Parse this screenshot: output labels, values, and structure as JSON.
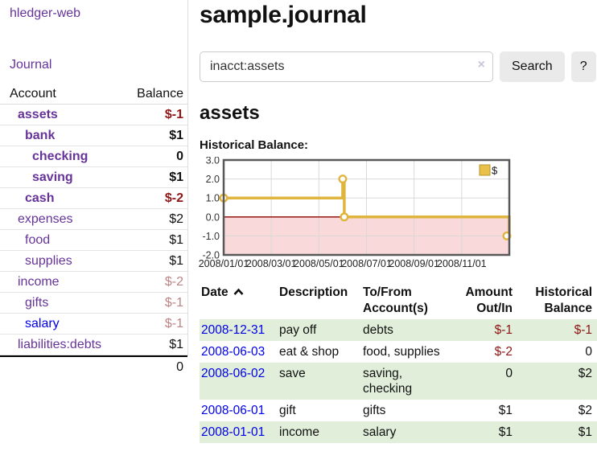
{
  "app": {
    "brand": "hledger-web",
    "nav_journal": "Journal"
  },
  "sidebar": {
    "headers": {
      "account": "Account",
      "balance": "Balance"
    },
    "accounts": [
      {
        "name": "assets",
        "balance": "$-1",
        "indent": 1,
        "matched": true,
        "name_color": "purple",
        "balance_tone": "neg-strong"
      },
      {
        "name": "bank",
        "balance": "$1",
        "indent": 2,
        "matched": true,
        "name_color": "purple",
        "balance_tone": "normal"
      },
      {
        "name": "checking",
        "balance": "0",
        "indent": 3,
        "matched": true,
        "name_color": "purple",
        "balance_tone": "normal"
      },
      {
        "name": "saving",
        "balance": "$1",
        "indent": 3,
        "matched": true,
        "name_color": "purple",
        "balance_tone": "normal"
      },
      {
        "name": "cash",
        "balance": "$-2",
        "indent": 2,
        "matched": true,
        "name_color": "purple",
        "balance_tone": "neg-strong"
      },
      {
        "name": "expenses",
        "balance": "$2",
        "indent": 1,
        "matched": false,
        "name_color": "purple",
        "balance_tone": "normal"
      },
      {
        "name": "food",
        "balance": "$1",
        "indent": 2,
        "matched": false,
        "name_color": "purple",
        "balance_tone": "normal"
      },
      {
        "name": "supplies",
        "balance": "$1",
        "indent": 2,
        "matched": false,
        "name_color": "purple",
        "balance_tone": "normal"
      },
      {
        "name": "income",
        "balance": "$-2",
        "indent": 1,
        "matched": false,
        "name_color": "purple",
        "balance_tone": "neg-light"
      },
      {
        "name": "gifts",
        "balance": "$-1",
        "indent": 2,
        "matched": false,
        "name_color": "purple",
        "balance_tone": "neg-light"
      },
      {
        "name": "salary",
        "balance": "$-1",
        "indent": 2,
        "matched": false,
        "name_color": "blue",
        "balance_tone": "neg-light"
      },
      {
        "name": "liabilities:debts",
        "balance": "$1",
        "indent": 1,
        "matched": false,
        "name_color": "purple",
        "balance_tone": "normal"
      }
    ],
    "total": "0"
  },
  "main": {
    "title": "sample.journal",
    "search": {
      "value": "inacct:assets",
      "clear_icon": "×",
      "button_label": "Search",
      "help_label": "?"
    },
    "section_title": "assets",
    "chart_label": "Historical Balance:"
  },
  "chart_data": {
    "type": "line",
    "title": "Historical Balance of assets",
    "step": true,
    "series": [
      {
        "name": "$",
        "points": [
          {
            "date": "2008-01-01",
            "value": 1
          },
          {
            "date": "2008-06-01",
            "value": 2
          },
          {
            "date": "2008-06-03",
            "value": 0
          },
          {
            "date": "2008-12-31",
            "value": -1
          }
        ]
      }
    ],
    "ylim": [
      -2,
      3
    ],
    "yticks": [
      "3.0",
      "2.0",
      "1.0",
      "0.0",
      "-1.0",
      "-2.0"
    ],
    "xticks": [
      "2008/01/01",
      "2008/03/01",
      "2008/05/01",
      "2008/07/01",
      "2008/09/01",
      "2008/11/01"
    ],
    "x_range_months": 12,
    "grid": true,
    "legend": {
      "label": "$",
      "position": "top-right"
    },
    "colors": {
      "line": "#e0b53e",
      "marker_fill": "#ffffff",
      "legend_fill": "#e8c04a",
      "legend_border": "#b89530",
      "negative_region": "#f9d9d9",
      "zero_line": "#8b0000",
      "grid": "#d9d9d9",
      "border": "#58585a"
    }
  },
  "register": {
    "columns": [
      "Date",
      "Description",
      "To/From\nAccount(s)",
      "Amount\nOut/In",
      "Historical\nBalance"
    ],
    "sort_icon": "chevron-up",
    "rows": [
      {
        "date": "2008-12-31",
        "description": "pay off",
        "to_from": "debts",
        "amount": "$-1",
        "balance": "$-1",
        "amount_neg": true,
        "balance_neg": true
      },
      {
        "date": "2008-06-03",
        "description": "eat & shop",
        "to_from": "food, supplies",
        "amount": "$-2",
        "balance": "0",
        "amount_neg": true,
        "balance_neg": false
      },
      {
        "date": "2008-06-02",
        "description": "save",
        "to_from": "saving,\nchecking",
        "amount": "0",
        "balance": "$2",
        "amount_neg": false,
        "balance_neg": false
      },
      {
        "date": "2008-06-01",
        "description": "gift",
        "to_from": "gifts",
        "amount": "$1",
        "balance": "$2",
        "amount_neg": false,
        "balance_neg": false
      },
      {
        "date": "2008-01-01",
        "description": "income",
        "to_from": "salary",
        "amount": "$1",
        "balance": "$1",
        "amount_neg": false,
        "balance_neg": false
      }
    ]
  }
}
